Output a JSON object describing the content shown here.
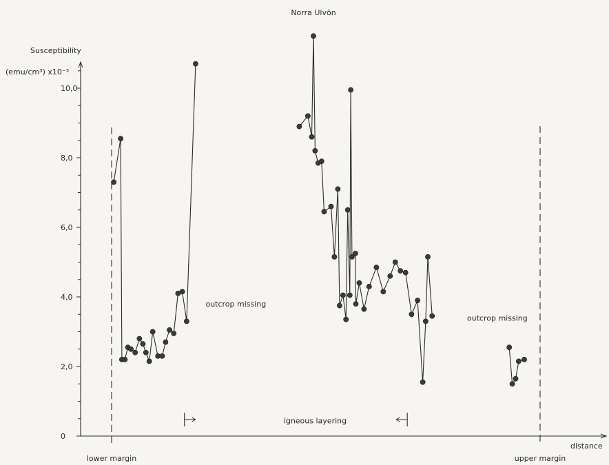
{
  "chart_data": {
    "type": "line",
    "title": "Norra Ulvön",
    "ylabel_line1": "Susceptibility",
    "ylabel_unit": "(emu/cm³) x10⁻³",
    "xlabel": "distance",
    "ylim": [
      0,
      11
    ],
    "y_ticks": [
      {
        "value": 0,
        "label": "0"
      },
      {
        "value": 2,
        "label": "2,0"
      },
      {
        "value": 4,
        "label": "4,0"
      },
      {
        "value": 6,
        "label": "6,0"
      },
      {
        "value": 8,
        "label": "8,0"
      },
      {
        "value": 10,
        "label": "10,0"
      }
    ],
    "grid": false,
    "x_axis_ticks": false,
    "colors": {
      "line": "#2a2a2a",
      "marker": "#3a3a3a",
      "background": "#f6f5f1"
    },
    "margins": [
      {
        "label": "lower margin",
        "x": 0
      },
      {
        "label": "upper margin",
        "x": 100
      }
    ],
    "annotations": [
      {
        "text": "outcrop missing",
        "x": 29,
        "y": 3.8
      },
      {
        "text": "outcrop missing",
        "x": 90,
        "y": 3.4
      },
      {
        "text": "igneous layering",
        "x": 47.5,
        "y": 0.45
      }
    ],
    "igneous_layering_range": [
      17,
      69
    ],
    "segments": [
      {
        "points": [
          [
            0.5,
            7.3
          ],
          [
            2.1,
            8.55
          ],
          [
            2.4,
            2.2
          ],
          [
            3.1,
            2.2
          ],
          [
            3.8,
            2.55
          ],
          [
            4.5,
            2.5
          ],
          [
            5.5,
            2.4
          ],
          [
            6.5,
            2.8
          ],
          [
            7.3,
            2.65
          ],
          [
            8.0,
            2.4
          ],
          [
            8.8,
            2.15
          ],
          [
            9.6,
            3.0
          ],
          [
            10.8,
            2.3
          ],
          [
            11.8,
            2.3
          ],
          [
            12.6,
            2.7
          ],
          [
            13.5,
            3.05
          ],
          [
            14.5,
            2.95
          ],
          [
            15.5,
            4.1
          ],
          [
            16.5,
            4.15
          ],
          [
            17.5,
            3.3
          ],
          [
            19.6,
            10.7
          ]
        ]
      },
      {
        "points": [
          [
            43.8,
            8.9
          ],
          [
            45.8,
            9.2
          ],
          [
            46.7,
            8.6
          ],
          [
            47.1,
            11.5
          ],
          [
            47.5,
            8.2
          ],
          [
            48.2,
            7.85
          ],
          [
            49.0,
            7.9
          ],
          [
            49.6,
            6.45
          ],
          [
            51.2,
            6.6
          ],
          [
            52.0,
            5.15
          ],
          [
            52.8,
            7.1
          ],
          [
            53.2,
            3.75
          ],
          [
            54.0,
            4.05
          ],
          [
            54.7,
            3.35
          ],
          [
            55.1,
            6.5
          ],
          [
            55.6,
            4.05
          ],
          [
            55.8,
            9.95
          ],
          [
            56.1,
            5.15
          ],
          [
            56.9,
            5.25
          ],
          [
            57.0,
            3.8
          ],
          [
            57.8,
            4.4
          ],
          [
            58.9,
            3.65
          ],
          [
            60.1,
            4.3
          ],
          [
            61.8,
            4.85
          ],
          [
            63.4,
            4.15
          ],
          [
            65.0,
            4.6
          ],
          [
            66.2,
            5.0
          ],
          [
            67.4,
            4.75
          ],
          [
            68.6,
            4.7
          ],
          [
            70.0,
            3.5
          ],
          [
            71.4,
            3.9
          ],
          [
            72.6,
            1.55
          ],
          [
            73.3,
            3.3
          ],
          [
            73.8,
            5.15
          ],
          [
            74.8,
            3.45
          ]
        ]
      },
      {
        "points": [
          [
            92.8,
            2.55
          ],
          [
            93.5,
            1.5
          ],
          [
            94.3,
            1.65
          ],
          [
            95.0,
            2.15
          ],
          [
            96.3,
            2.2
          ]
        ]
      }
    ]
  }
}
